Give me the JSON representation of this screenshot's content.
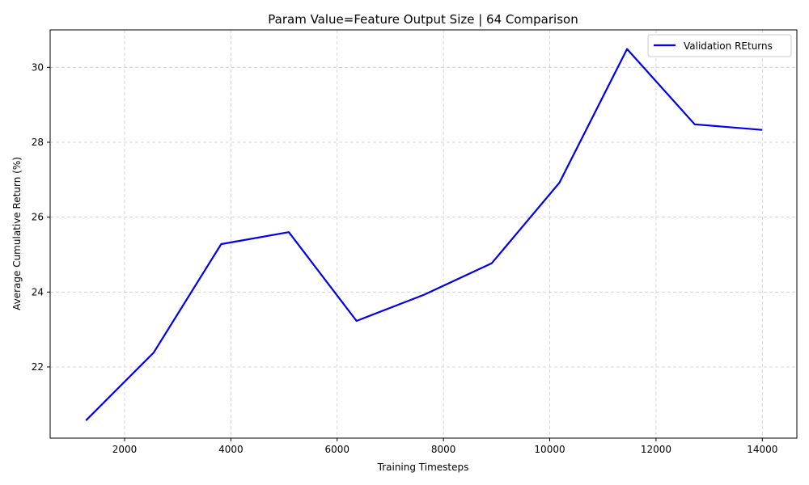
{
  "chart_data": {
    "type": "line",
    "title": "Param Value=Feature Output Size | 64 Comparison",
    "xlabel": "Training Timesteps",
    "ylabel": "Average Cumulative Return (%)",
    "xlim": [
      600,
      14650
    ],
    "ylim": [
      20.1,
      31.0
    ],
    "xticks": [
      2000,
      4000,
      6000,
      8000,
      10000,
      12000,
      14000
    ],
    "yticks": [
      22,
      24,
      26,
      28,
      30
    ],
    "grid": true,
    "legend_position": "top-right",
    "series": [
      {
        "name": "Validation REturns",
        "color": "#0000ee",
        "x": [
          1273,
          2545,
          3818,
          5091,
          6364,
          7636,
          8909,
          10182,
          11455,
          12727,
          14000
        ],
        "y": [
          20.57,
          22.38,
          25.28,
          25.6,
          23.23,
          23.93,
          24.77,
          26.92,
          30.49,
          28.48,
          28.33
        ]
      }
    ]
  }
}
